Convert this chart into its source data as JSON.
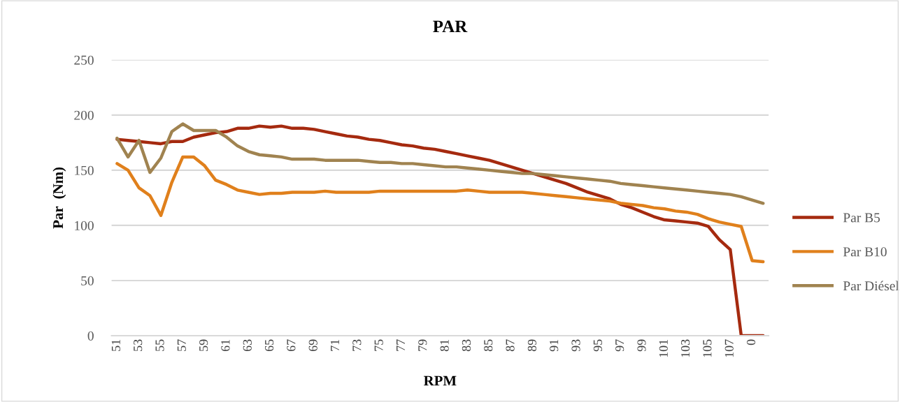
{
  "chart_data": {
    "type": "line",
    "title": "PAR",
    "xlabel": "RPM",
    "ylabel": "Par  (Nm)",
    "categories": [
      "51",
      null,
      "53",
      null,
      "55",
      null,
      "57",
      null,
      "59",
      null,
      "61",
      null,
      "63",
      null,
      "65",
      null,
      "67",
      null,
      "69",
      null,
      "71",
      null,
      "73",
      null,
      "75",
      null,
      "77",
      null,
      "79",
      null,
      "81",
      null,
      "83",
      null,
      "85",
      null,
      "87",
      null,
      "89",
      null,
      "91",
      null,
      "93",
      null,
      "95",
      null,
      "97",
      null,
      "99",
      null,
      "101",
      null,
      "103",
      null,
      "105",
      null,
      "107",
      null,
      "0",
      null
    ],
    "ylim": [
      0,
      250
    ],
    "yticks": [
      0,
      50,
      100,
      150,
      200,
      250
    ],
    "grid": "y",
    "legend": "right",
    "marker": "none",
    "line_style": "solid",
    "series": [
      {
        "name": "Par B5",
        "color": "#a52a0f",
        "values": [
          178,
          177,
          176,
          175,
          174,
          176,
          176,
          180,
          182,
          184,
          185,
          188,
          188,
          190,
          189,
          190,
          188,
          188,
          187,
          185,
          183,
          181,
          180,
          178,
          177,
          175,
          173,
          172,
          170,
          169,
          167,
          165,
          163,
          161,
          159,
          156,
          153,
          150,
          147,
          144,
          141,
          138,
          134,
          130,
          127,
          124,
          119,
          116,
          112,
          108,
          105,
          104,
          103,
          102,
          99,
          87,
          78,
          0,
          0,
          0
        ]
      },
      {
        "name": "Par B10",
        "color": "#e0801c",
        "values": [
          156,
          150,
          134,
          127,
          109,
          139,
          162,
          162,
          154,
          141,
          137,
          132,
          130,
          128,
          129,
          129,
          130,
          130,
          130,
          131,
          130,
          130,
          130,
          130,
          131,
          131,
          131,
          131,
          131,
          131,
          131,
          131,
          132,
          131,
          130,
          130,
          130,
          130,
          129,
          128,
          127,
          126,
          125,
          124,
          123,
          122,
          120,
          119,
          118,
          116,
          115,
          113,
          112,
          110,
          106,
          103,
          101,
          99,
          68,
          67
        ]
      },
      {
        "name": "Par Diésel",
        "color": "#a08350",
        "values": [
          179,
          162,
          177,
          148,
          161,
          185,
          192,
          186,
          186,
          186,
          180,
          172,
          167,
          164,
          163,
          162,
          160,
          160,
          160,
          159,
          159,
          159,
          159,
          158,
          157,
          157,
          156,
          156,
          155,
          154,
          153,
          153,
          152,
          151,
          150,
          149,
          148,
          147,
          147,
          146,
          145,
          144,
          143,
          142,
          141,
          140,
          138,
          137,
          136,
          135,
          134,
          133,
          132,
          131,
          130,
          129,
          128,
          126,
          123,
          120
        ]
      }
    ]
  }
}
